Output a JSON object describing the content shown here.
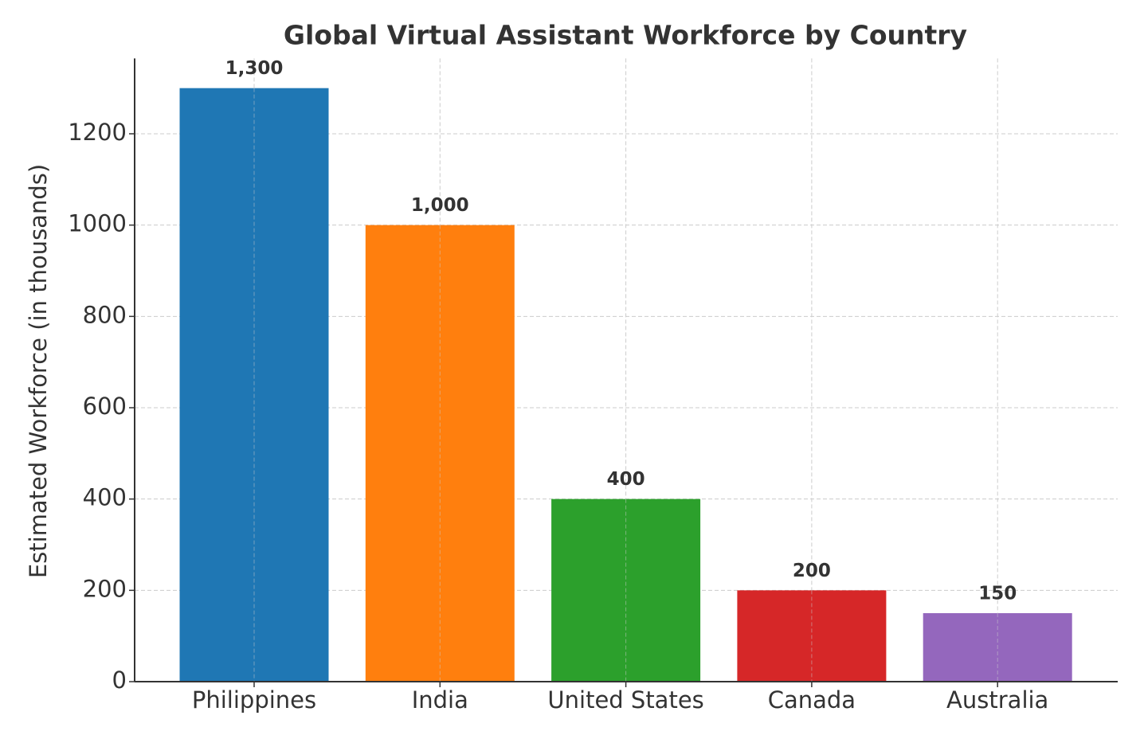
{
  "chart_data": {
    "type": "bar",
    "title": "Global Virtual Assistant Workforce by Country",
    "y_label": "Estimated Workforce (in thousands)",
    "categories": [
      "Philippines",
      "India",
      "United States",
      "Canada",
      "Australia"
    ],
    "values": [
      1300,
      1000,
      400,
      200,
      150
    ],
    "value_labels": [
      "1,300",
      "1,000",
      "400",
      "200",
      "150"
    ],
    "colors": [
      "#1f77b4",
      "#ff7f0e",
      "#2ca02c",
      "#d62728",
      "#9467bd"
    ],
    "ylim": [
      0,
      1365
    ],
    "yticks": [
      0,
      200,
      400,
      600,
      800,
      1000,
      1200
    ],
    "grid": true
  }
}
